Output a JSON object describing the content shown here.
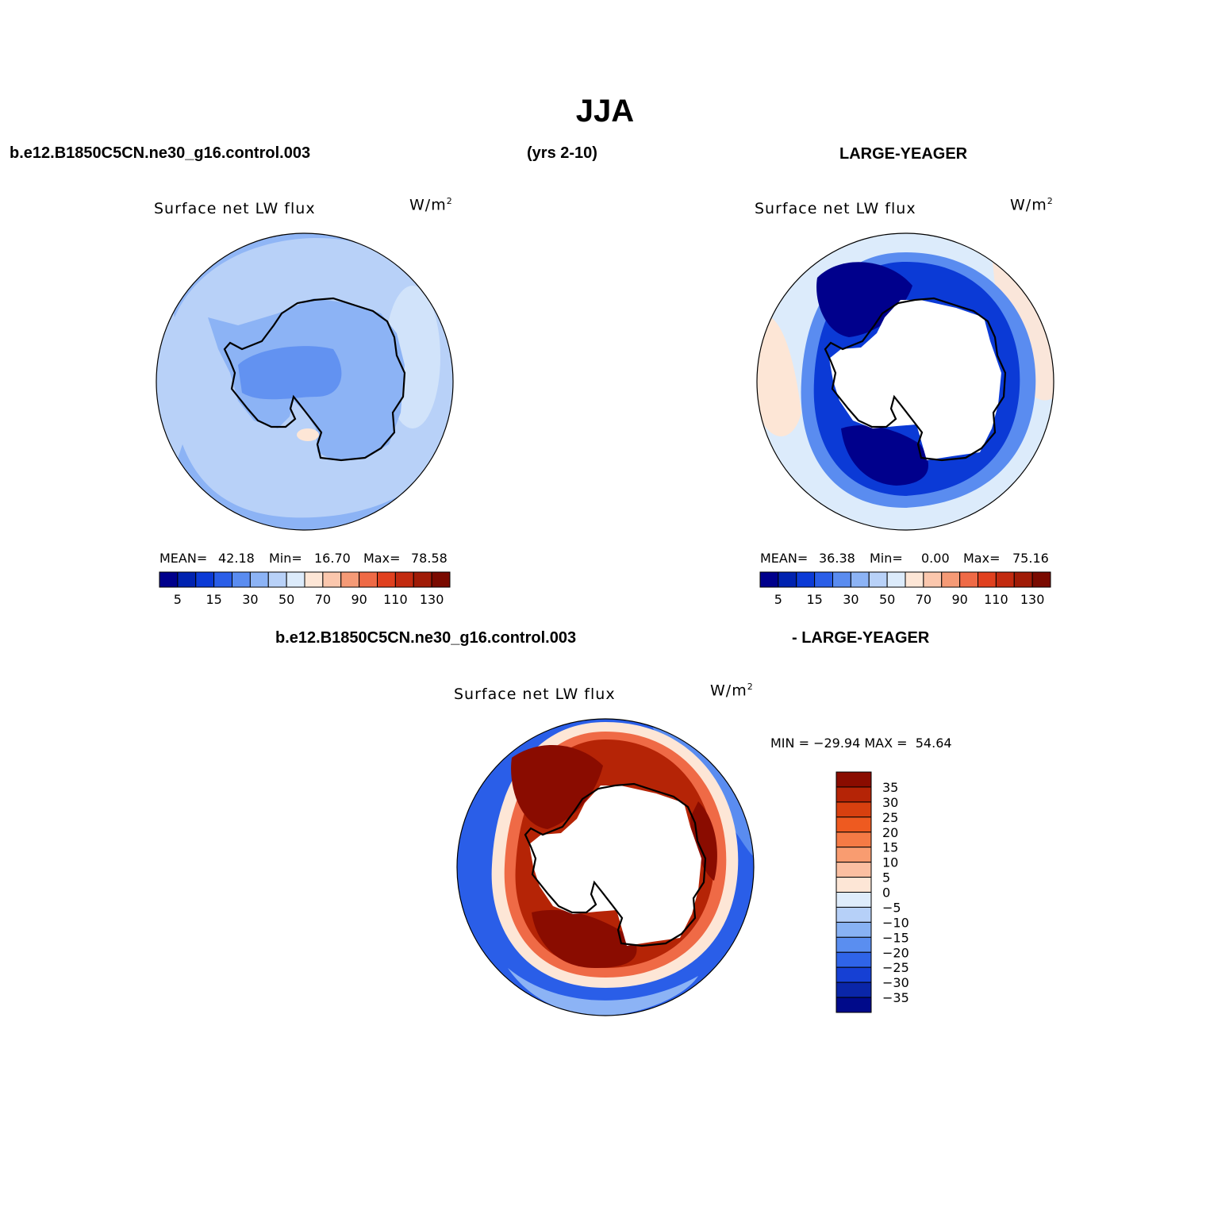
{
  "title": "JJA",
  "header": {
    "case": "b.e12.B1850C5CN.ne30_g16.control.003",
    "years": "(yrs 2-10)",
    "obs": "LARGE-YEAGER"
  },
  "diff_header": {
    "case": "b.e12.B1850C5CN.ne30_g16.control.003",
    "obs": "- LARGE-YEAGER"
  },
  "panels": [
    {
      "variable": "Surface net LW flux",
      "units": "W/m",
      "units_sup": "2",
      "stats": {
        "mean_label": "MEAN=",
        "mean": "42.18",
        "min_label": "Min=",
        "min": "16.70",
        "max_label": "Max=",
        "max": "78.58"
      }
    },
    {
      "variable": "Surface net LW flux",
      "units": "W/m",
      "units_sup": "2",
      "stats": {
        "mean_label": "MEAN=",
        "mean": "36.38",
        "min_label": "Min=",
        "min": "0.00",
        "max_label": "Max=",
        "max": "75.16"
      }
    },
    {
      "variable": "Surface net LW flux",
      "units": "W/m",
      "units_sup": "2",
      "stats_line": "MIN = −29.94 MAX =  54.64"
    }
  ],
  "colorbar_abs": {
    "labels": [
      "5",
      "15",
      "30",
      "50",
      "70",
      "90",
      "110",
      "130"
    ],
    "colors": [
      "#00008c",
      "#0022b0",
      "#0b3ad6",
      "#2a5ee8",
      "#5a8cf0",
      "#8cb3f5",
      "#b8d1f8",
      "#dcebfb",
      "#fde6d6",
      "#fbc7ad",
      "#f59a76",
      "#ef6a46",
      "#e0401e",
      "#c22a0f",
      "#a01b06",
      "#7a0a00"
    ]
  },
  "colorbar_diff": {
    "labels": [
      "35",
      "30",
      "25",
      "20",
      "15",
      "10",
      "5",
      "0",
      "−5",
      "−10",
      "−15",
      "−20",
      "−25",
      "−30",
      "−35"
    ],
    "colors": [
      "#8a0c00",
      "#b52406",
      "#d8400f",
      "#ee5a20",
      "#f57a45",
      "#f99c70",
      "#fbbfa1",
      "#fde6d6",
      "#deecfb",
      "#b6d0f8",
      "#88b2f4",
      "#5a8ef0",
      "#2f64e8",
      "#1640d4",
      "#0a26a8",
      "#000a8a"
    ]
  },
  "map_colors": {
    "panel1_base": "#b8d1f8",
    "panel1_mid": "#8cb3f5",
    "panel1_inner": "#5a8cf0",
    "panel2_outer": "#dcebfb",
    "panel2_peach": "#fde6d6",
    "panel2_ring": "#00008c",
    "diff_outer": "#2a5ee8",
    "diff_ring": "#8a0c00",
    "land": "#ffffff"
  }
}
